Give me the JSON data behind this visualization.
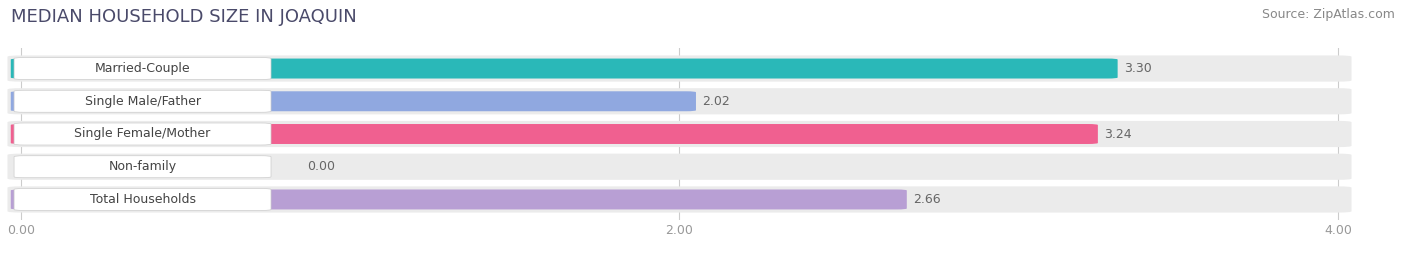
{
  "title": "MEDIAN HOUSEHOLD SIZE IN JOAQUIN",
  "source": "Source: ZipAtlas.com",
  "categories": [
    "Married-Couple",
    "Single Male/Father",
    "Single Female/Mother",
    "Non-family",
    "Total Households"
  ],
  "values": [
    3.3,
    2.02,
    3.24,
    0.0,
    2.66
  ],
  "bar_colors": [
    "#2ab8b8",
    "#90a8e0",
    "#f06090",
    "#f5c99a",
    "#b89fd4"
  ],
  "xlim_max": 4.0,
  "xtick_labels": [
    "0.00",
    "2.00",
    "4.00"
  ],
  "xtick_vals": [
    0.0,
    2.0,
    4.0
  ],
  "background_color": "#ffffff",
  "bar_bg_color": "#ebebeb",
  "title_fontsize": 13,
  "source_fontsize": 9,
  "label_fontsize": 9,
  "value_fontsize": 9,
  "title_color": "#4a4a6a",
  "source_color": "#888888",
  "label_color": "#444444",
  "value_color": "#666666"
}
